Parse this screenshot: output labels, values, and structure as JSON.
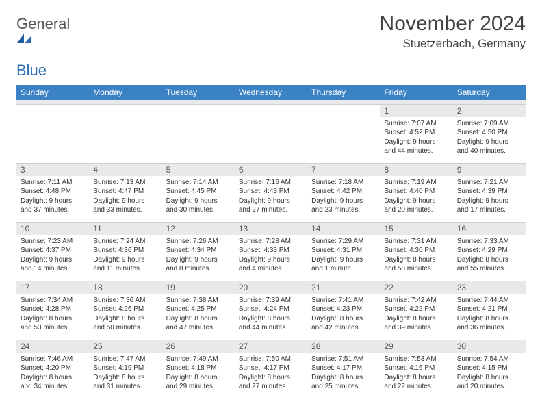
{
  "logo": {
    "word1": "General",
    "word2": "Blue"
  },
  "title": "November 2024",
  "location": "Stuetzerbach, Germany",
  "colors": {
    "header_bg": "#3b82c4",
    "header_text": "#ffffff",
    "daynum_bg": "#e9e9e9",
    "grid_line": "#cfcfcf",
    "logo_blue": "#2b6cb0",
    "body_text": "#333333",
    "page_bg": "#ffffff"
  },
  "fonts": {
    "title_size_pt": 22,
    "location_size_pt": 13,
    "header_size_pt": 9,
    "cell_size_pt": 7.5
  },
  "day_headers": [
    "Sunday",
    "Monday",
    "Tuesday",
    "Wednesday",
    "Thursday",
    "Friday",
    "Saturday"
  ],
  "weeks": [
    [
      {
        "n": "",
        "sr": "",
        "ss": "",
        "dl": ""
      },
      {
        "n": "",
        "sr": "",
        "ss": "",
        "dl": ""
      },
      {
        "n": "",
        "sr": "",
        "ss": "",
        "dl": ""
      },
      {
        "n": "",
        "sr": "",
        "ss": "",
        "dl": ""
      },
      {
        "n": "",
        "sr": "",
        "ss": "",
        "dl": ""
      },
      {
        "n": "1",
        "sr": "Sunrise: 7:07 AM",
        "ss": "Sunset: 4:52 PM",
        "dl": "Daylight: 9 hours and 44 minutes."
      },
      {
        "n": "2",
        "sr": "Sunrise: 7:09 AM",
        "ss": "Sunset: 4:50 PM",
        "dl": "Daylight: 9 hours and 40 minutes."
      }
    ],
    [
      {
        "n": "3",
        "sr": "Sunrise: 7:11 AM",
        "ss": "Sunset: 4:48 PM",
        "dl": "Daylight: 9 hours and 37 minutes."
      },
      {
        "n": "4",
        "sr": "Sunrise: 7:13 AM",
        "ss": "Sunset: 4:47 PM",
        "dl": "Daylight: 9 hours and 33 minutes."
      },
      {
        "n": "5",
        "sr": "Sunrise: 7:14 AM",
        "ss": "Sunset: 4:45 PM",
        "dl": "Daylight: 9 hours and 30 minutes."
      },
      {
        "n": "6",
        "sr": "Sunrise: 7:16 AM",
        "ss": "Sunset: 4:43 PM",
        "dl": "Daylight: 9 hours and 27 minutes."
      },
      {
        "n": "7",
        "sr": "Sunrise: 7:18 AM",
        "ss": "Sunset: 4:42 PM",
        "dl": "Daylight: 9 hours and 23 minutes."
      },
      {
        "n": "8",
        "sr": "Sunrise: 7:19 AM",
        "ss": "Sunset: 4:40 PM",
        "dl": "Daylight: 9 hours and 20 minutes."
      },
      {
        "n": "9",
        "sr": "Sunrise: 7:21 AM",
        "ss": "Sunset: 4:39 PM",
        "dl": "Daylight: 9 hours and 17 minutes."
      }
    ],
    [
      {
        "n": "10",
        "sr": "Sunrise: 7:23 AM",
        "ss": "Sunset: 4:37 PM",
        "dl": "Daylight: 9 hours and 14 minutes."
      },
      {
        "n": "11",
        "sr": "Sunrise: 7:24 AM",
        "ss": "Sunset: 4:36 PM",
        "dl": "Daylight: 9 hours and 11 minutes."
      },
      {
        "n": "12",
        "sr": "Sunrise: 7:26 AM",
        "ss": "Sunset: 4:34 PM",
        "dl": "Daylight: 9 hours and 8 minutes."
      },
      {
        "n": "13",
        "sr": "Sunrise: 7:28 AM",
        "ss": "Sunset: 4:33 PM",
        "dl": "Daylight: 9 hours and 4 minutes."
      },
      {
        "n": "14",
        "sr": "Sunrise: 7:29 AM",
        "ss": "Sunset: 4:31 PM",
        "dl": "Daylight: 9 hours and 1 minute."
      },
      {
        "n": "15",
        "sr": "Sunrise: 7:31 AM",
        "ss": "Sunset: 4:30 PM",
        "dl": "Daylight: 8 hours and 58 minutes."
      },
      {
        "n": "16",
        "sr": "Sunrise: 7:33 AM",
        "ss": "Sunset: 4:29 PM",
        "dl": "Daylight: 8 hours and 55 minutes."
      }
    ],
    [
      {
        "n": "17",
        "sr": "Sunrise: 7:34 AM",
        "ss": "Sunset: 4:28 PM",
        "dl": "Daylight: 8 hours and 53 minutes."
      },
      {
        "n": "18",
        "sr": "Sunrise: 7:36 AM",
        "ss": "Sunset: 4:26 PM",
        "dl": "Daylight: 8 hours and 50 minutes."
      },
      {
        "n": "19",
        "sr": "Sunrise: 7:38 AM",
        "ss": "Sunset: 4:25 PM",
        "dl": "Daylight: 8 hours and 47 minutes."
      },
      {
        "n": "20",
        "sr": "Sunrise: 7:39 AM",
        "ss": "Sunset: 4:24 PM",
        "dl": "Daylight: 8 hours and 44 minutes."
      },
      {
        "n": "21",
        "sr": "Sunrise: 7:41 AM",
        "ss": "Sunset: 4:23 PM",
        "dl": "Daylight: 8 hours and 42 minutes."
      },
      {
        "n": "22",
        "sr": "Sunrise: 7:42 AM",
        "ss": "Sunset: 4:22 PM",
        "dl": "Daylight: 8 hours and 39 minutes."
      },
      {
        "n": "23",
        "sr": "Sunrise: 7:44 AM",
        "ss": "Sunset: 4:21 PM",
        "dl": "Daylight: 8 hours and 36 minutes."
      }
    ],
    [
      {
        "n": "24",
        "sr": "Sunrise: 7:46 AM",
        "ss": "Sunset: 4:20 PM",
        "dl": "Daylight: 8 hours and 34 minutes."
      },
      {
        "n": "25",
        "sr": "Sunrise: 7:47 AM",
        "ss": "Sunset: 4:19 PM",
        "dl": "Daylight: 8 hours and 31 minutes."
      },
      {
        "n": "26",
        "sr": "Sunrise: 7:49 AM",
        "ss": "Sunset: 4:18 PM",
        "dl": "Daylight: 8 hours and 29 minutes."
      },
      {
        "n": "27",
        "sr": "Sunrise: 7:50 AM",
        "ss": "Sunset: 4:17 PM",
        "dl": "Daylight: 8 hours and 27 minutes."
      },
      {
        "n": "28",
        "sr": "Sunrise: 7:51 AM",
        "ss": "Sunset: 4:17 PM",
        "dl": "Daylight: 8 hours and 25 minutes."
      },
      {
        "n": "29",
        "sr": "Sunrise: 7:53 AM",
        "ss": "Sunset: 4:16 PM",
        "dl": "Daylight: 8 hours and 22 minutes."
      },
      {
        "n": "30",
        "sr": "Sunrise: 7:54 AM",
        "ss": "Sunset: 4:15 PM",
        "dl": "Daylight: 8 hours and 20 minutes."
      }
    ]
  ]
}
